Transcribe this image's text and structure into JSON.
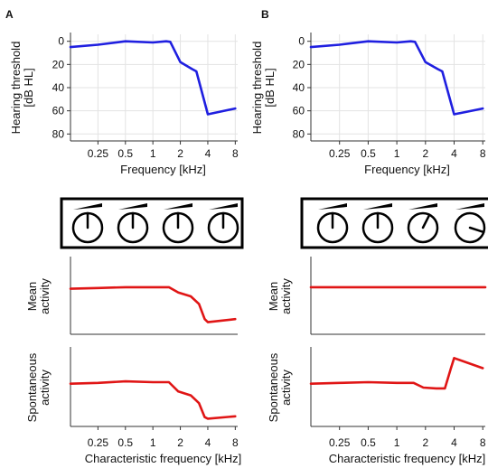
{
  "panels": {
    "A": {
      "label": "A"
    },
    "B": {
      "label": "B"
    }
  },
  "colors": {
    "threshold_line": "#1f1fe0",
    "activity_line": "#e01515",
    "grid": "#e3e3e3",
    "axis": "#333333"
  },
  "chart_data": [
    {
      "panel": "A",
      "type": "line",
      "ylabel": "Hearing threshold [dB HL]",
      "ylabel_lines": [
        "Hearing threshold",
        "[dB HL]"
      ],
      "xlabel": "Frequency [kHz]",
      "xscale": "log",
      "xticks": [
        0.25,
        0.5,
        1,
        2,
        4,
        8
      ],
      "xtick_labels": [
        "0.25",
        "0.5",
        "1",
        "2",
        "4",
        "8"
      ],
      "xlim": [
        0.125,
        8.5
      ],
      "yticks": [
        0,
        20,
        40,
        60,
        80
      ],
      "ytick_labels": [
        "0",
        "20",
        "40",
        "60",
        "80"
      ],
      "ylim": [
        -6,
        86
      ],
      "yinverted": true,
      "grid": true,
      "series": [
        {
          "x": [
            0.125,
            0.25,
            0.5,
            1,
            1.4,
            1.55,
            2,
            2.7,
            3.0,
            4,
            8
          ],
          "y": [
            5,
            3,
            0,
            1,
            0,
            0.5,
            18,
            24,
            26,
            63,
            58
          ]
        }
      ]
    },
    {
      "panel": "B",
      "type": "line",
      "ylabel": "Hearing threshold [dB HL]",
      "ylabel_lines": [
        "Hearing threshold",
        "[dB HL]"
      ],
      "xlabel": "Frequency [kHz]",
      "xscale": "log",
      "xticks": [
        0.25,
        0.5,
        1,
        2,
        4,
        8
      ],
      "xtick_labels": [
        "0.25",
        "0.5",
        "1",
        "2",
        "4",
        "8"
      ],
      "xlim": [
        0.125,
        8.5
      ],
      "yticks": [
        0,
        20,
        40,
        60,
        80
      ],
      "ytick_labels": [
        "0",
        "20",
        "40",
        "60",
        "80"
      ],
      "ylim": [
        -6,
        86
      ],
      "yinverted": true,
      "grid": true,
      "series": [
        {
          "x": [
            0.125,
            0.25,
            0.5,
            1,
            1.4,
            1.55,
            2,
            2.7,
            3.0,
            4,
            8
          ],
          "y": [
            5,
            3,
            0,
            1,
            0,
            0.5,
            18,
            24,
            26,
            63,
            58
          ]
        }
      ]
    },
    {
      "panel": "A",
      "type": "line",
      "ylabel": "Mean activity",
      "ylabel_lines": [
        "Mean",
        "activity"
      ],
      "xscale": "log",
      "xlim": [
        0.125,
        8.5
      ],
      "ylim": [
        0,
        1
      ],
      "grid": false,
      "series": [
        {
          "x": [
            0.125,
            0.25,
            0.5,
            1,
            1.5,
            1.9,
            2.6,
            3.2,
            3.7,
            4,
            8
          ],
          "y": [
            0.6,
            0.61,
            0.62,
            0.62,
            0.62,
            0.55,
            0.5,
            0.4,
            0.2,
            0.16,
            0.2
          ]
        }
      ]
    },
    {
      "panel": "B",
      "type": "line",
      "ylabel": "Mean activity",
      "ylabel_lines": [
        "Mean",
        "activity"
      ],
      "xscale": "log",
      "xlim": [
        0.125,
        8.5
      ],
      "ylim": [
        0,
        1
      ],
      "grid": false,
      "series": [
        {
          "x": [
            0.125,
            8.5
          ],
          "y": [
            0.62,
            0.62
          ]
        }
      ]
    },
    {
      "panel": "A",
      "type": "line",
      "ylabel": "Spontaneous activity",
      "ylabel_lines": [
        "Spontaneous",
        "activity"
      ],
      "xlabel": "Characteristic frequency [kHz]",
      "xscale": "log",
      "xticks": [
        0.25,
        0.5,
        1,
        2,
        4,
        8
      ],
      "xtick_labels": [
        "0.25",
        "0.5",
        "1",
        "2",
        "4",
        "8"
      ],
      "xlim": [
        0.125,
        8.5
      ],
      "ylim": [
        0,
        1
      ],
      "grid": false,
      "series": [
        {
          "x": [
            0.125,
            0.25,
            0.5,
            1,
            1.5,
            1.9,
            2.6,
            3.2,
            3.7,
            4,
            8
          ],
          "y": [
            0.55,
            0.56,
            0.58,
            0.57,
            0.57,
            0.45,
            0.4,
            0.3,
            0.12,
            0.1,
            0.13
          ]
        }
      ]
    },
    {
      "panel": "B",
      "type": "line",
      "ylabel": "Spontaneous activity",
      "ylabel_lines": [
        "Spontaneous",
        "activity"
      ],
      "xlabel": "Characteristic frequency [kHz]",
      "xscale": "log",
      "xticks": [
        0.25,
        0.5,
        1,
        2,
        4,
        8
      ],
      "xtick_labels": [
        "0.25",
        "0.5",
        "1",
        "2",
        "4",
        "8"
      ],
      "xlim": [
        0.125,
        8.5
      ],
      "ylim": [
        0,
        1
      ],
      "grid": false,
      "series": [
        {
          "x": [
            0.125,
            0.25,
            0.5,
            1,
            1.5,
            1.9,
            2.6,
            3.2,
            3.7,
            4,
            8
          ],
          "y": [
            0.55,
            0.56,
            0.57,
            0.56,
            0.56,
            0.5,
            0.49,
            0.49,
            0.75,
            0.88,
            0.75
          ]
        }
      ]
    }
  ],
  "gain_controls": {
    "A": {
      "knob_levels": [
        0.5,
        0.5,
        0.5,
        0.5
      ]
    },
    "B": {
      "knob_levels": [
        0.5,
        0.5,
        0.6,
        0.9
      ]
    }
  }
}
